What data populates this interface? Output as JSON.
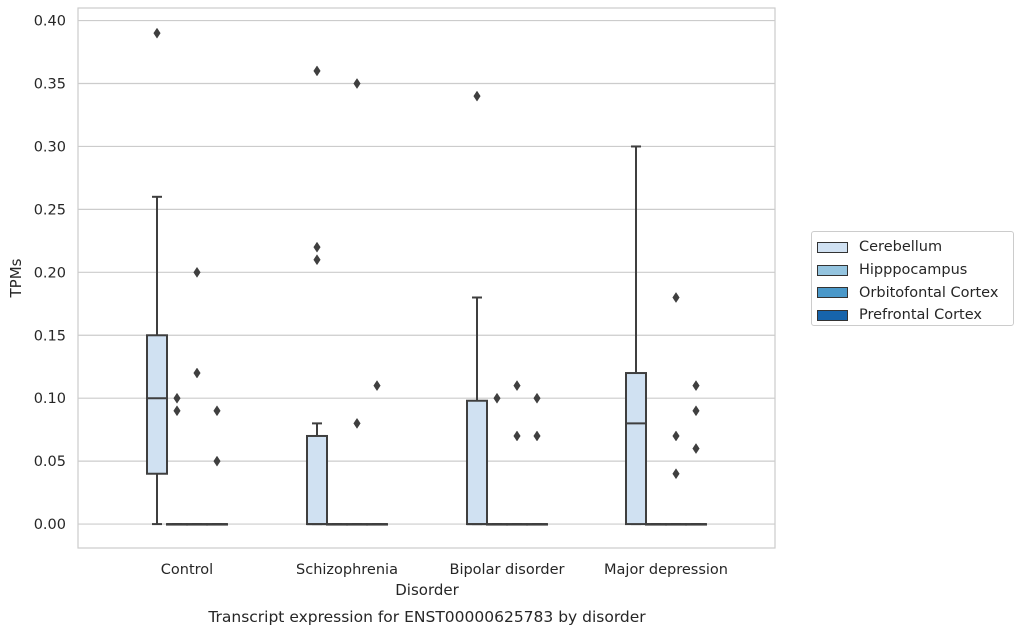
{
  "chart_data": {
    "type": "box",
    "title": "Transcript expression for ENST00000625783 by disorder",
    "xlabel": "Disorder",
    "ylabel": "TPMs",
    "ylim": [
      -0.019,
      0.41
    ],
    "yticks": [
      "0.00",
      "0.05",
      "0.10",
      "0.15",
      "0.20",
      "0.25",
      "0.30",
      "0.35",
      "0.40"
    ],
    "ytick_values": [
      0,
      0.05,
      0.1,
      0.15,
      0.2,
      0.25,
      0.3,
      0.35,
      0.4
    ],
    "categories": [
      "Control",
      "Schizophrenia",
      "Bipolar disorder",
      "Major depression"
    ],
    "grid": "horizontal",
    "legend_position": "right",
    "series": [
      {
        "name": "Cerebellum",
        "color": "#d0e1f2",
        "boxes": [
          {
            "category": "Control",
            "whisker_low": 0,
            "q1": 0.04,
            "median": 0.1,
            "q3": 0.15,
            "whisker_high": 0.26,
            "outliers": [
              0.39
            ]
          },
          {
            "category": "Schizophrenia",
            "whisker_low": 0,
            "q1": 0,
            "median": 0,
            "q3": 0.07,
            "whisker_high": 0.08,
            "outliers": [
              0.36,
              0.22,
              0.21
            ]
          },
          {
            "category": "Bipolar disorder",
            "whisker_low": 0,
            "q1": 0,
            "median": 0,
            "q3": 0.098,
            "whisker_high": 0.18,
            "outliers": [
              0.34
            ]
          },
          {
            "category": "Major depression",
            "whisker_low": 0,
            "q1": 0,
            "median": 0.08,
            "q3": 0.12,
            "whisker_high": 0.3,
            "outliers": []
          }
        ]
      },
      {
        "name": "Hipppocampus",
        "color": "#94c4df",
        "boxes": [
          {
            "category": "Control",
            "whisker_low": 0,
            "q1": 0,
            "median": 0,
            "q3": 0,
            "whisker_high": 0,
            "outliers": [
              0.1,
              0.09
            ]
          },
          {
            "category": "Schizophrenia",
            "whisker_low": 0,
            "q1": 0,
            "median": 0,
            "q3": 0,
            "whisker_high": 0,
            "outliers": []
          },
          {
            "category": "Bipolar disorder",
            "whisker_low": 0,
            "q1": 0,
            "median": 0,
            "q3": 0,
            "whisker_high": 0,
            "outliers": [
              0.1
            ]
          },
          {
            "category": "Major depression",
            "whisker_low": 0,
            "q1": 0,
            "median": 0,
            "q3": 0,
            "whisker_high": 0,
            "outliers": []
          }
        ]
      },
      {
        "name": "Orbitofontal Cortex",
        "color": "#4a98c9",
        "boxes": [
          {
            "category": "Control",
            "whisker_low": 0,
            "q1": 0,
            "median": 0,
            "q3": 0,
            "whisker_high": 0,
            "outliers": [
              0.2,
              0.12
            ]
          },
          {
            "category": "Schizophrenia",
            "whisker_low": 0,
            "q1": 0,
            "median": 0,
            "q3": 0,
            "whisker_high": 0,
            "outliers": [
              0.35,
              0.08
            ]
          },
          {
            "category": "Bipolar disorder",
            "whisker_low": 0,
            "q1": 0,
            "median": 0,
            "q3": 0,
            "whisker_high": 0,
            "outliers": [
              0.11,
              0.07
            ]
          },
          {
            "category": "Major depression",
            "whisker_low": 0,
            "q1": 0,
            "median": 0,
            "q3": 0,
            "whisker_high": 0,
            "outliers": [
              0.18,
              0.07,
              0.04
            ]
          }
        ]
      },
      {
        "name": "Prefrontal Cortex",
        "color": "#1764ab",
        "boxes": [
          {
            "category": "Control",
            "whisker_low": 0,
            "q1": 0,
            "median": 0,
            "q3": 0,
            "whisker_high": 0,
            "outliers": [
              0.09,
              0.05
            ]
          },
          {
            "category": "Schizophrenia",
            "whisker_low": 0,
            "q1": 0,
            "median": 0,
            "q3": 0,
            "whisker_high": 0,
            "outliers": [
              0.11
            ]
          },
          {
            "category": "Bipolar disorder",
            "whisker_low": 0,
            "q1": 0,
            "median": 0,
            "q3": 0,
            "whisker_high": 0,
            "outliers": [
              0.1,
              0.07
            ]
          },
          {
            "category": "Major depression",
            "whisker_low": 0,
            "q1": 0,
            "median": 0,
            "q3": 0,
            "whisker_high": 0,
            "outliers": [
              0.11,
              0.09,
              0.06
            ]
          }
        ]
      }
    ]
  }
}
